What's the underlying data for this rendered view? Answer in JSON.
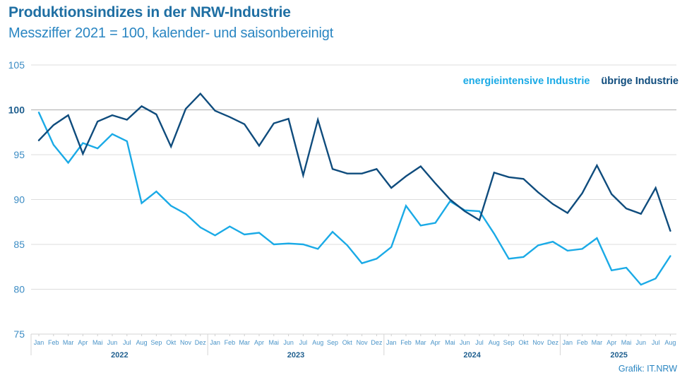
{
  "header": {
    "title": "Produktionsindizes in der NRW-Industrie",
    "subtitle": "Messziffer 2021 = 100, kalender- und saisonbereinigt"
  },
  "source": "Grafik: IT.NRW",
  "colors": {
    "energy": "#1aaae6",
    "other": "#0f4c7d",
    "grid": "#dddddd",
    "grid_ref": "#b9b9b9"
  },
  "chart_data": {
    "type": "line",
    "title": "Produktionsindizes in der NRW-Industrie",
    "subtitle": "Messziffer 2021 = 100, kalender- und saisonbereinigt",
    "xlabel": "",
    "ylabel": "",
    "ylim": [
      75,
      105
    ],
    "yticks": [
      75,
      80,
      85,
      90,
      95,
      100,
      105
    ],
    "reference_line": 100,
    "grid": true,
    "legend_position": "top-right",
    "years": [
      "2022",
      "2023",
      "2024",
      "2025"
    ],
    "x": [
      "Jan",
      "Feb",
      "Mar",
      "Apr",
      "Mai",
      "Jun",
      "Jul",
      "Aug",
      "Sep",
      "Okt",
      "Nov",
      "Dez",
      "Jan",
      "Feb",
      "Mar",
      "Apr",
      "Mai",
      "Jun",
      "Jul",
      "Aug",
      "Sep",
      "Okt",
      "Nov",
      "Dez",
      "Jan",
      "Feb",
      "Mar",
      "Apr",
      "Mai",
      "Jun",
      "Jul",
      "Aug",
      "Sep",
      "Okt",
      "Nov",
      "Dez",
      "Jan",
      "Feb",
      "Mar",
      "Apr",
      "Mai",
      "Jun",
      "Jul",
      "Aug"
    ],
    "series": [
      {
        "name": "energieintensive Industrie",
        "key": "energy",
        "values": [
          99.7,
          96.1,
          94.1,
          96.3,
          95.7,
          97.3,
          96.5,
          89.6,
          90.9,
          89.3,
          88.4,
          86.9,
          86.0,
          87.0,
          86.1,
          86.3,
          85.0,
          85.1,
          85.0,
          84.5,
          86.4,
          84.9,
          82.9,
          83.4,
          84.7,
          89.3,
          87.1,
          87.4,
          89.8,
          88.8,
          88.7,
          86.2,
          83.4,
          83.6,
          84.9,
          85.3,
          84.3,
          84.5,
          85.7,
          82.1,
          82.4,
          80.5,
          81.2,
          83.7
        ]
      },
      {
        "name": "übrige Industrie",
        "key": "other",
        "values": [
          96.6,
          98.3,
          99.4,
          95.1,
          98.7,
          99.4,
          98.9,
          100.4,
          99.5,
          95.9,
          100.1,
          101.8,
          99.9,
          99.2,
          98.4,
          96.0,
          98.5,
          99.0,
          92.7,
          98.9,
          93.4,
          92.9,
          92.9,
          93.4,
          91.3,
          92.6,
          93.7,
          91.8,
          90.0,
          88.7,
          87.7,
          93.0,
          92.5,
          92.3,
          90.8,
          89.5,
          88.5,
          90.7,
          93.8,
          90.6,
          89.0,
          88.4,
          91.3,
          86.5
        ]
      }
    ]
  }
}
